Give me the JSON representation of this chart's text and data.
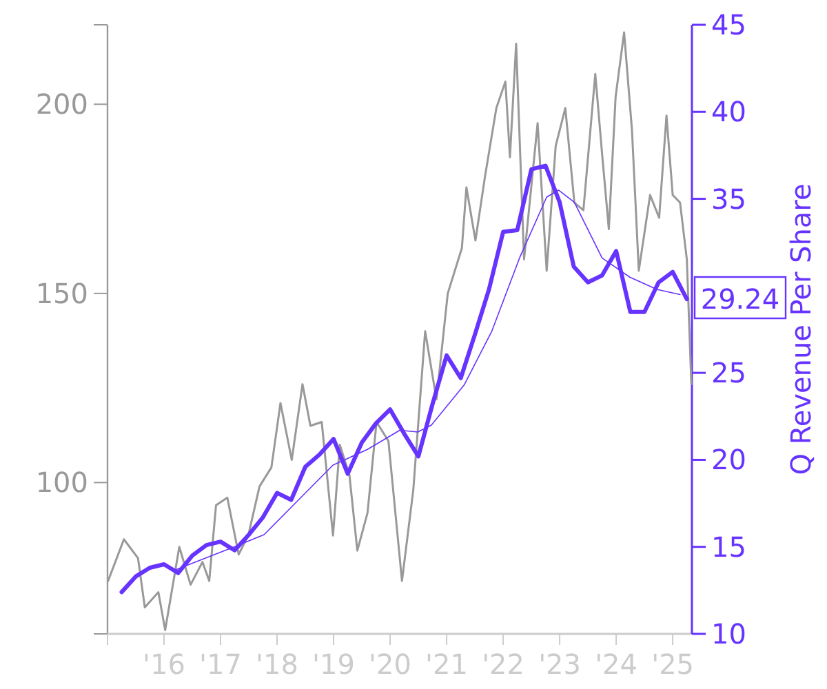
{
  "chart_data": {
    "type": "line",
    "y2label": "Q Revenue Per Share",
    "xlim": [
      2015,
      2025.34
    ],
    "xticks": [
      {
        "value": 2015,
        "label": null
      },
      {
        "value": 2016,
        "label": "'16"
      },
      {
        "value": 2017,
        "label": "'17"
      },
      {
        "value": 2018,
        "label": "'18"
      },
      {
        "value": 2019,
        "label": "'19"
      },
      {
        "value": 2020,
        "label": "'20"
      },
      {
        "value": 2021,
        "label": "'21"
      },
      {
        "value": 2022,
        "label": "'22"
      },
      {
        "value": 2023,
        "label": "'23"
      },
      {
        "value": 2024,
        "label": "'24"
      },
      {
        "value": 2025,
        "label": "'25"
      }
    ],
    "ylim": [
      60,
      221
    ],
    "yticks": [
      100,
      150,
      200
    ],
    "y2lim": [
      10,
      45
    ],
    "y2ticks": [
      10,
      15,
      20,
      25,
      35,
      40,
      45
    ],
    "series": [
      {
        "color": "#999999",
        "x": [
          2015.01,
          2015.29,
          2015.54,
          2015.66,
          2015.9,
          2016.02,
          2016.27,
          2016.47,
          2016.68,
          2016.8,
          2016.92,
          2017.12,
          2017.32,
          2017.49,
          2017.69,
          2017.9,
          2018.06,
          2018.26,
          2018.45,
          2018.59,
          2018.79,
          2018.99,
          2019.11,
          2019.28,
          2019.42,
          2019.6,
          2019.76,
          2019.97,
          2020.21,
          2020.41,
          2020.62,
          2020.82,
          2021.02,
          2021.27,
          2021.35,
          2021.51,
          2021.68,
          2021.88,
          2022.04,
          2022.12,
          2022.23,
          2022.37,
          2022.61,
          2022.77,
          2022.93,
          2023.1,
          2023.26,
          2023.42,
          2023.63,
          2023.75,
          2023.87,
          2023.99,
          2024.14,
          2024.28,
          2024.4,
          2024.6,
          2024.76,
          2024.89,
          2025.0,
          2025.13,
          2025.25,
          2025.33
        ],
        "values": [
          74,
          85,
          80,
          67,
          71,
          61,
          83,
          73,
          79,
          74,
          94,
          96,
          81,
          86,
          99,
          104,
          121,
          106,
          126,
          115,
          116,
          86,
          110,
          102,
          82,
          92,
          116,
          111,
          74,
          98,
          140,
          122,
          150,
          162,
          178,
          164,
          181,
          199,
          206,
          186,
          216,
          159,
          195,
          156,
          189,
          199,
          174,
          172,
          208,
          187,
          167,
          202,
          219,
          193,
          156,
          176,
          170,
          197,
          176,
          174,
          159,
          126
        ]
      },
      {
        "color": "#6633ff",
        "axis": "y2",
        "x": [
          2015.25,
          2015.5,
          2015.75,
          2016,
          2016.25,
          2016.5,
          2016.75,
          2017,
          2017.25,
          2017.5,
          2017.75,
          2018,
          2018.25,
          2018.5,
          2018.75,
          2019,
          2019.25,
          2019.5,
          2019.75,
          2020,
          2020.25,
          2020.5,
          2020.75,
          2021,
          2021.25,
          2021.5,
          2021.75,
          2022,
          2022.25,
          2022.5,
          2022.75,
          2023,
          2023.25,
          2023.5,
          2023.75,
          2024,
          2024.25,
          2024.5,
          2024.75,
          2025,
          2025.25
        ],
        "values": [
          12.4,
          13.3,
          13.8,
          14.0,
          13.5,
          14.5,
          15.1,
          15.3,
          14.8,
          15.7,
          16.7,
          18.1,
          17.7,
          19.6,
          20.3,
          21.2,
          19.2,
          21.0,
          22.1,
          22.9,
          21.5,
          20.2,
          23.2,
          26.0,
          24.7,
          27.2,
          29.8,
          33.1,
          33.2,
          36.7,
          36.9,
          34.8,
          31.1,
          30.2,
          30.6,
          32.0,
          28.5,
          28.5,
          30.2,
          30.8,
          29.24
        ],
        "value_labels": [
          null,
          null,
          null,
          null,
          null,
          null,
          null,
          null,
          null,
          null,
          null,
          null,
          null,
          null,
          null,
          null,
          null,
          null,
          null,
          null,
          null,
          null,
          null,
          null,
          null,
          null,
          null,
          null,
          null,
          null,
          null,
          null,
          null,
          null,
          null,
          null,
          null,
          null,
          null,
          null,
          "29.24"
        ]
      },
      {
        "color": "#6633ff",
        "axis": "y2",
        "x": [
          2016.22,
          2017.24,
          2017.77,
          2018.38,
          2018.99,
          2019.6,
          2020.17,
          2020.49,
          2020.73,
          2021.31,
          2021.8,
          2022.29,
          2022.77,
          2022.98,
          2023.26,
          2023.75,
          2024.24,
          2024.72,
          2025.13
        ],
        "values": [
          13.7,
          15.0,
          15.7,
          17.7,
          19.7,
          20.6,
          21.7,
          21.6,
          22.0,
          24.3,
          27.4,
          31.6,
          35.1,
          35.5,
          34.8,
          31.6,
          30.5,
          29.8,
          29.5
        ]
      }
    ]
  }
}
